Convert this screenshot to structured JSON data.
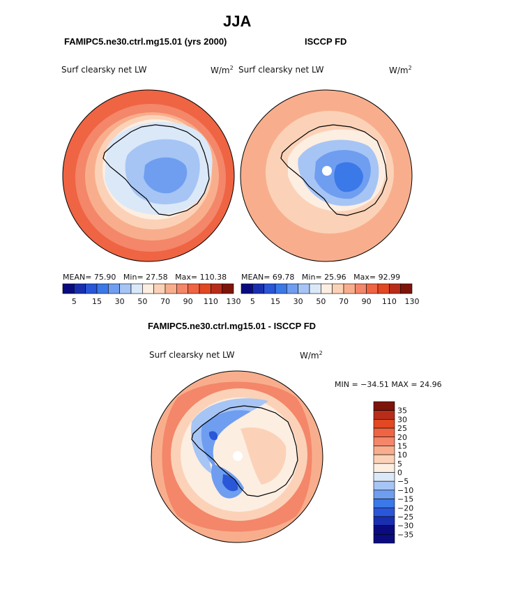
{
  "page": {
    "title": "JJA",
    "left_title": "FAMIPC5.ne30.ctrl.mg15.01 (yrs 2000)",
    "right_title": "ISCCP FD",
    "diff_title": "FAMIPC5.ne30.ctrl.mg15.01 - ISCCP FD"
  },
  "panels": [
    {
      "variable": "Surf clearsky net LW",
      "units_base": "W/m",
      "units_exp": "2",
      "mean_label": "MEAN=",
      "mean": "75.90",
      "min_label": "Min=",
      "min": "27.58",
      "max_label": "Max=",
      "max": "110.38"
    },
    {
      "variable": "Surf clearsky net LW",
      "units_base": "W/m",
      "units_exp": "2",
      "mean_label": "MEAN=",
      "mean": "69.78",
      "min_label": "Min=",
      "min": "25.96",
      "max_label": "Max=",
      "max": "92.99"
    },
    {
      "variable": "Surf clearsky net LW",
      "units_base": "W/m",
      "units_exp": "2",
      "minmax_text": "MIN = −34.51  MAX =  24.96"
    }
  ],
  "chart_data": [
    {
      "type": "heatmap",
      "title": "FAMIPC5.ne30.ctrl.mg15.01 (yrs 2000)",
      "projection": "south polar stereographic",
      "variable": "Surf clearsky net LW",
      "units": "W/m2",
      "mean": 75.9,
      "min": 27.58,
      "max": 110.38,
      "colorbar_ticks": [
        "5",
        "15",
        "30",
        "50",
        "70",
        "90",
        "110",
        "130"
      ]
    },
    {
      "type": "heatmap",
      "title": "ISCCP FD",
      "projection": "south polar stereographic",
      "variable": "Surf clearsky net LW",
      "units": "W/m2",
      "mean": 69.78,
      "min": 25.96,
      "max": 92.99,
      "colorbar_ticks": [
        "5",
        "15",
        "30",
        "50",
        "70",
        "90",
        "110",
        "130"
      ]
    },
    {
      "type": "heatmap",
      "title": "FAMIPC5.ne30.ctrl.mg15.01 - ISCCP FD",
      "projection": "south polar stereographic",
      "variable": "Surf clearsky net LW",
      "units": "W/m2",
      "min": -34.51,
      "max": 24.96,
      "colorbar_ticks": [
        "35",
        "30",
        "25",
        "20",
        "15",
        "10",
        "5",
        "0",
        "−5",
        "−10",
        "−15",
        "−20",
        "−25",
        "−30",
        "−35"
      ]
    }
  ],
  "colors": {
    "abs_scale": [
      "#0b0b80",
      "#1a2fb0",
      "#2a56d8",
      "#3b78e8",
      "#6f9ef0",
      "#a6c5f5",
      "#dbe8f8",
      "#fdeee2",
      "#fbd2b8",
      "#f8ae8c",
      "#f4866a",
      "#ef6443",
      "#e24822",
      "#b72d1a",
      "#7d1409"
    ],
    "diff_scale": [
      "#0b0b80",
      "#1a2fb0",
      "#2a56d8",
      "#3b78e8",
      "#6f9ef0",
      "#a6c5f5",
      "#dbe8f8",
      "#fdeee2",
      "#fbd2b8",
      "#f8ae8c",
      "#f4866a",
      "#ef6443",
      "#e24822",
      "#b72d1a",
      "#7d1409"
    ]
  }
}
